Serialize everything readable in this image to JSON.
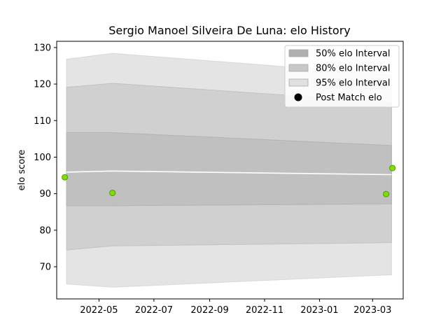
{
  "chart_data": {
    "type": "area",
    "title": "Sergio Manoel Silveira De Luna: elo History",
    "xlabel": "",
    "ylabel": "elo score",
    "x_ticks": [
      "2022-05",
      "2022-07",
      "2022-09",
      "2022-11",
      "2023-01",
      "2023-03"
    ],
    "y_ticks": [
      70,
      80,
      90,
      100,
      110,
      120,
      130
    ],
    "xlim": [
      "2022-03-15",
      "2023-04-04"
    ],
    "ylim": [
      61.2,
      131.7
    ],
    "grid": false,
    "legend_position": "top-right",
    "legend": [
      {
        "label": "50% elo Interval",
        "kind": "band",
        "color": "#b0b0b0"
      },
      {
        "label": "80% elo Interval",
        "kind": "band",
        "color": "#c8c8c8"
      },
      {
        "label": "95% elo Interval",
        "kind": "band",
        "color": "#e0e0e0"
      },
      {
        "label": "Post Match elo",
        "kind": "marker",
        "color": "#000000"
      }
    ],
    "dates": [
      "2022-03-26",
      "2022-05-16",
      "2023-03-22"
    ],
    "bands": [
      {
        "name": "95% elo Interval",
        "color": "#e4e4e4",
        "edge": "#d8d8d8",
        "lower": [
          65.3,
          64.4,
          67.8
        ],
        "upper": [
          126.8,
          128.4,
          122.5
        ]
      },
      {
        "name": "80% elo Interval",
        "color": "#d0d0d0",
        "edge": "#c2c2c2",
        "lower": [
          74.6,
          75.7,
          76.6
        ],
        "upper": [
          119.1,
          120.2,
          115.0
        ]
      },
      {
        "name": "50% elo Interval",
        "color": "#c0c0c0",
        "edge": "#b2b2b2",
        "lower": [
          86.7,
          86.7,
          87.2
        ],
        "upper": [
          106.7,
          106.7,
          103.2
        ]
      }
    ],
    "mean_line": {
      "values": [
        95.9,
        96.2,
        95.2
      ]
    },
    "series": [
      {
        "name": "Post Match elo",
        "points": [
          {
            "x": "2022-03-24",
            "y": 94.5
          },
          {
            "x": "2022-05-16",
            "y": 90.2
          },
          {
            "x": "2023-03-16",
            "y": 89.9
          },
          {
            "x": "2023-03-23",
            "y": 97.0
          }
        ],
        "fill": "#7fe000",
        "stroke": "#4c9a00"
      }
    ]
  }
}
